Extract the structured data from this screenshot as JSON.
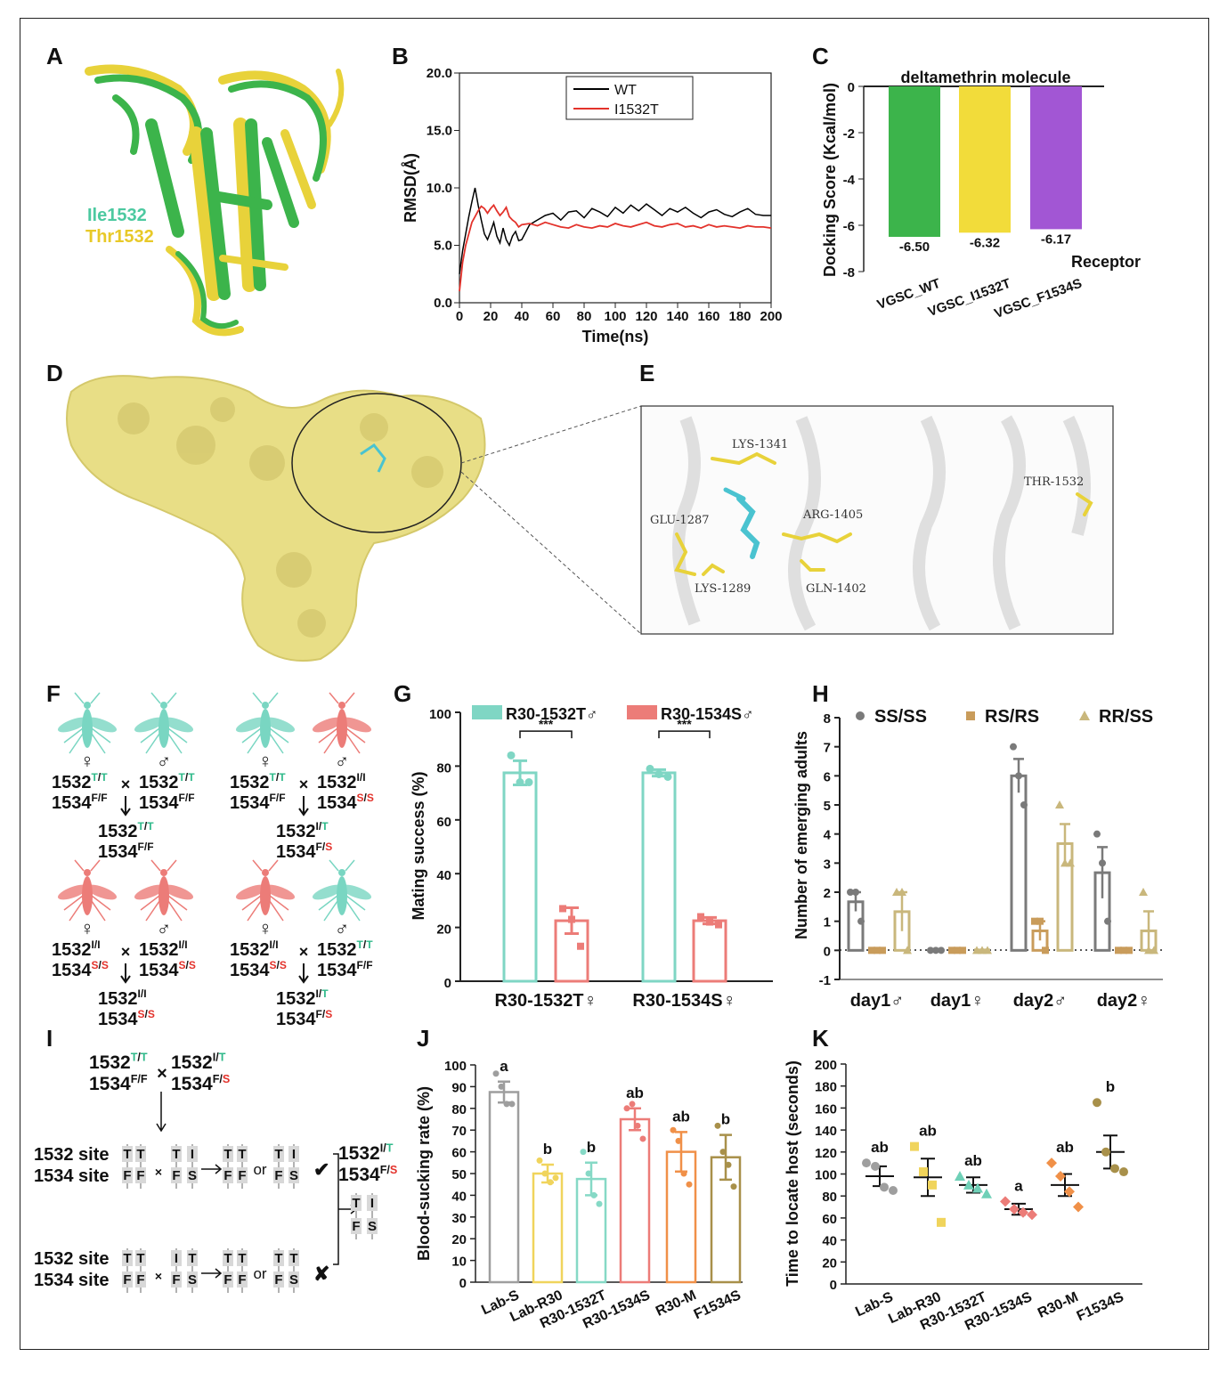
{
  "panels": [
    "A",
    "B",
    "C",
    "D",
    "E",
    "F",
    "G",
    "H",
    "I",
    "J",
    "K"
  ],
  "colors": {
    "green": "#3cb44b",
    "yellow": "#f2dc3a",
    "wt": "#000000",
    "mut": "#e3322b",
    "purple": "#a256d4",
    "teal": "#7fd6c4",
    "salmon": "#ec7c78",
    "grey": "#7a7a7a",
    "tan": "#c99c5b",
    "khaki": "#c9b77c",
    "surface": "#e8de86"
  },
  "panelA": {
    "label1": "Ile1532",
    "label2": "Thr1532"
  },
  "panelD": {},
  "panelE": {
    "residues": [
      "LYS-1341",
      "THR-1532",
      "GLU-1287",
      "ARG-1405",
      "LYS-1289",
      "GLN-1402"
    ]
  },
  "panelF": {
    "crosses": [
      {
        "female": [
          "1532",
          "T/T",
          "1534",
          "F/F"
        ],
        "male": [
          "1532",
          "T/T",
          "1534",
          "F/F"
        ],
        "child": [
          "1532",
          "T/T",
          "1534",
          "F/F"
        ]
      },
      {
        "female": [
          "1532",
          "T/T",
          "1534",
          "F/F"
        ],
        "male": [
          "1532",
          "I/I",
          "1534",
          "S/S"
        ],
        "child": [
          "1532",
          "I/T",
          "1534",
          "F/S"
        ]
      },
      {
        "female": [
          "1532",
          "I/I",
          "1534",
          "S/S"
        ],
        "male": [
          "1532",
          "I/I",
          "1534",
          "S/S"
        ],
        "child": [
          "1532",
          "I/I",
          "1534",
          "S/S"
        ]
      },
      {
        "female": [
          "1532",
          "I/I",
          "1534",
          "S/S"
        ],
        "male": [
          "1532",
          "T/T",
          "1534",
          "F/F"
        ],
        "child": [
          "1532",
          "I/T",
          "1534",
          "F/S"
        ]
      }
    ],
    "female_symbol": "♀",
    "male_symbol": "♂",
    "cross_symbol": "×"
  },
  "panelI": {
    "top": {
      "a": [
        "1532",
        "T/T",
        "1534",
        "F/F"
      ],
      "b": [
        "1532",
        "I/T",
        "1534",
        "F/S"
      ]
    },
    "site1532": "1532 site",
    "site1534": "1534 site",
    "or": "or",
    "check": "✔",
    "cross": "✘",
    "result": [
      "1532",
      "I/T",
      "1534",
      "F/S"
    ]
  },
  "chart_data": [
    {
      "panel": "B",
      "type": "line",
      "xlabel": "Time(ns)",
      "ylabel": "RMSD(Å)",
      "xlim": [
        0,
        200
      ],
      "ylim": [
        0,
        20
      ],
      "xticks": [
        "0",
        "20",
        "40",
        "60",
        "80",
        "100",
        "120",
        "140",
        "160",
        "180",
        "200"
      ],
      "yticks": [
        "0.0",
        "5.0",
        "10.0",
        "15.0",
        "20.0"
      ],
      "series": [
        {
          "name": "WT",
          "x": [
            0,
            2,
            4,
            6,
            8,
            10,
            12,
            14,
            16,
            18,
            20,
            22,
            24,
            26,
            28,
            30,
            32,
            34,
            36,
            38,
            40,
            45,
            50,
            55,
            60,
            65,
            70,
            75,
            80,
            85,
            90,
            95,
            100,
            105,
            110,
            115,
            120,
            125,
            130,
            135,
            140,
            145,
            150,
            155,
            160,
            165,
            170,
            175,
            180,
            185,
            190,
            195,
            200
          ],
          "y": [
            2.5,
            4.5,
            6.0,
            7.5,
            8.8,
            10.0,
            8.5,
            7.2,
            6.0,
            5.5,
            6.2,
            7.0,
            5.8,
            5.2,
            6.5,
            5.5,
            5.0,
            5.8,
            6.2,
            5.4,
            5.5,
            6.8,
            7.2,
            7.6,
            7.8,
            7.2,
            7.9,
            8.0,
            7.4,
            8.2,
            7.9,
            7.5,
            8.3,
            7.8,
            8.5,
            8.0,
            8.6,
            8.1,
            7.6,
            8.2,
            7.9,
            8.3,
            7.8,
            7.4,
            7.9,
            8.1,
            7.7,
            7.5,
            7.9,
            8.2,
            7.7,
            7.6,
            7.6
          ]
        },
        {
          "name": "I1532T",
          "x": [
            0,
            2,
            4,
            6,
            8,
            10,
            12,
            14,
            16,
            18,
            20,
            22,
            24,
            26,
            28,
            30,
            32,
            34,
            36,
            38,
            40,
            45,
            50,
            55,
            60,
            65,
            70,
            75,
            80,
            85,
            90,
            95,
            100,
            105,
            110,
            115,
            120,
            125,
            130,
            135,
            140,
            145,
            150,
            155,
            160,
            165,
            170,
            175,
            180,
            185,
            190,
            195,
            200
          ],
          "y": [
            1.0,
            3.5,
            5.0,
            6.0,
            7.0,
            7.5,
            8.0,
            8.4,
            8.2,
            7.8,
            8.2,
            8.5,
            8.0,
            7.6,
            7.9,
            8.3,
            7.5,
            7.2,
            7.0,
            6.6,
            6.8,
            6.9,
            6.7,
            7.0,
            6.8,
            6.6,
            6.5,
            6.8,
            6.6,
            6.5,
            6.7,
            6.6,
            6.9,
            6.7,
            6.6,
            6.8,
            7.0,
            6.7,
            6.6,
            6.8,
            6.9,
            6.6,
            6.7,
            6.5,
            6.8,
            6.6,
            6.7,
            6.6,
            6.5,
            6.7,
            6.6,
            6.6,
            6.5
          ]
        }
      ]
    },
    {
      "panel": "C",
      "type": "bar",
      "title": "deltamethrin molecule",
      "ylabel": "Docking Score (Kcal/mol)",
      "xlabel": "Receptor",
      "categories": [
        "VGSC_WT",
        "VGSC_I1532T",
        "VGSC_F1534S"
      ],
      "values": [
        -6.5,
        -6.32,
        -6.17
      ],
      "value_labels": [
        "-6.50",
        "-6.32",
        "-6.17"
      ],
      "ylim": [
        -8,
        0
      ],
      "yticks": [
        "0",
        "-2",
        "-4",
        "-6",
        "-8"
      ]
    },
    {
      "panel": "G",
      "type": "bar",
      "ylabel": "Mating success (%)",
      "categories": [
        "R30-1532T♀",
        "R30-1534S♀"
      ],
      "series": [
        {
          "name": "R30-1532T♂",
          "values": [
            77.5,
            77.5
          ],
          "err": [
            4.5,
            1.2
          ],
          "points": [
            [
              84,
              74,
              74
            ],
            [
              79,
              77,
              76
            ]
          ]
        },
        {
          "name": "R30-1534S♂",
          "values": [
            22.5,
            22.5
          ],
          "err": [
            4.8,
            1.2
          ],
          "points": [
            [
              27,
              23,
              13
            ],
            [
              24,
              22,
              21
            ]
          ]
        }
      ],
      "significance": [
        "***",
        "***"
      ],
      "ylim": [
        0,
        100
      ],
      "yticks": [
        "0",
        "20",
        "40",
        "60",
        "80",
        "100"
      ]
    },
    {
      "panel": "H",
      "type": "bar",
      "ylabel": "Number of emerging adults",
      "categories": [
        "day1♂",
        "day1♀",
        "day2♂",
        "day2♀"
      ],
      "series": [
        {
          "name": "SS/SS",
          "values": [
            1.67,
            0,
            6.0,
            2.67
          ],
          "err": [
            0.33,
            0,
            0.58,
            0.88
          ],
          "points": [
            [
              2,
              2,
              1
            ],
            [
              0,
              0,
              0
            ],
            [
              7,
              6,
              5
            ],
            [
              4,
              3,
              1
            ]
          ]
        },
        {
          "name": "RS/RS",
          "values": [
            0,
            0,
            0.67,
            0
          ],
          "err": [
            0,
            0,
            0.33,
            0
          ],
          "points": [
            [
              0,
              0,
              0
            ],
            [
              0,
              0,
              0
            ],
            [
              1,
              1,
              0
            ],
            [
              0,
              0,
              0
            ]
          ]
        },
        {
          "name": "RR/SS",
          "values": [
            1.33,
            0,
            3.67,
            0.67
          ],
          "err": [
            0.67,
            0,
            0.67,
            0.67
          ],
          "points": [
            [
              2,
              2,
              0
            ],
            [
              0,
              0,
              0
            ],
            [
              5,
              3,
              3
            ],
            [
              2,
              0,
              0
            ]
          ]
        }
      ],
      "ylim": [
        -1,
        8
      ],
      "yticks": [
        "-1",
        "0",
        "1",
        "2",
        "3",
        "4",
        "5",
        "6",
        "7",
        "8"
      ]
    },
    {
      "panel": "J",
      "type": "bar",
      "ylabel": "Blood-sucking rate (%)",
      "categories": [
        "Lab-S",
        "Lab-R30",
        "R30-1532T",
        "R30-1534S",
        "R30-M",
        "F1534S"
      ],
      "values": [
        87.5,
        50.0,
        47.5,
        75.0,
        60.0,
        57.5
      ],
      "err": [
        4.8,
        4.1,
        7.5,
        5.0,
        9.1,
        10.3
      ],
      "letters": [
        "a",
        "b",
        "b",
        "ab",
        "ab",
        "b"
      ],
      "points": [
        [
          96,
          90,
          82,
          82
        ],
        [
          56,
          50,
          46,
          48
        ],
        [
          60,
          50,
          40,
          36
        ],
        [
          80,
          82,
          72,
          66
        ],
        [
          70,
          65,
          50,
          45
        ],
        [
          72,
          60,
          54,
          44
        ]
      ],
      "ylim": [
        0,
        100
      ],
      "yticks": [
        "0",
        "10",
        "20",
        "30",
        "40",
        "50",
        "60",
        "70",
        "80",
        "90",
        "100"
      ]
    },
    {
      "panel": "K",
      "type": "scatter",
      "ylabel": "Time to locate host (seconds)",
      "categories": [
        "Lab-S",
        "Lab-R30",
        "R30-1532T",
        "R30-1534S",
        "R30-M",
        "F1534S"
      ],
      "means": [
        98,
        97,
        90,
        68,
        90,
        120
      ],
      "err": [
        9,
        17,
        7,
        5,
        10,
        15
      ],
      "letters": [
        "ab",
        "ab",
        "ab",
        "a",
        "ab",
        "b"
      ],
      "points": [
        [
          110,
          107,
          88,
          85
        ],
        [
          125,
          102,
          90,
          56
        ],
        [
          98,
          90,
          87,
          82
        ],
        [
          75,
          68,
          65,
          63
        ],
        [
          110,
          98,
          84,
          70
        ],
        [
          165,
          120,
          105,
          102
        ]
      ],
      "ylim": [
        0,
        200
      ],
      "yticks": [
        "0",
        "20",
        "40",
        "60",
        "80",
        "100",
        "120",
        "140",
        "160",
        "180",
        "200"
      ]
    }
  ]
}
